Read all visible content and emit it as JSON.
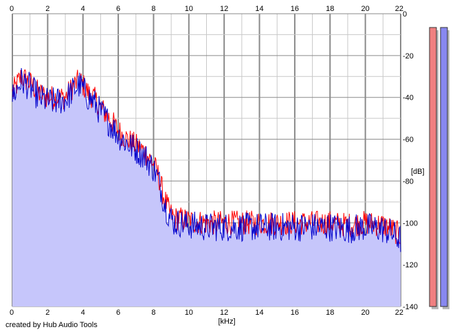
{
  "footer": {
    "credit": "created by Hub Audio Tools"
  },
  "colors": {
    "background": "#ffffff",
    "grid_major": "#8a8a8a",
    "grid_minor": "#c8c8c8",
    "fill": "#c6c6fb",
    "channel_left": "#ff0000",
    "channel_right": "#0000cc",
    "meter_left": "#f08080",
    "meter_right": "#8888f0",
    "meter_shadow": "#b8b8b8"
  },
  "chart_data": {
    "type": "line",
    "xlabel": "[kHz]",
    "ylabel": "[dB]",
    "xlim": [
      0,
      22
    ],
    "ylim": [
      -140,
      0
    ],
    "x_ticks": [
      "0",
      "2",
      "4",
      "6",
      "8",
      "10",
      "12",
      "14",
      "16",
      "18",
      "20",
      "22"
    ],
    "y_ticks": [
      "0",
      "-20",
      "-40",
      "-60",
      "-80",
      "-100",
      "-120",
      "-140"
    ],
    "grid": true,
    "x": [
      0,
      0.5,
      1,
      1.5,
      2,
      2.5,
      3,
      3.5,
      3.8,
      4,
      4.3,
      4.6,
      5,
      5.5,
      6,
      6.5,
      7,
      7.5,
      8,
      8.3,
      8.6,
      8.9,
      9.2,
      9.5,
      10,
      11,
      12,
      13,
      14,
      15,
      16,
      17,
      18,
      19,
      20,
      21,
      21.5,
      22
    ],
    "series": [
      {
        "values": [
          -38,
          -30,
          -33,
          -38,
          -40,
          -40,
          -40,
          -34,
          -32,
          -34,
          -38,
          -40,
          -45,
          -50,
          -56,
          -60,
          -63,
          -66,
          -72,
          -78,
          -88,
          -95,
          -98,
          -98,
          -99,
          -100,
          -100,
          -100,
          -100,
          -100,
          -100,
          -100,
          -100,
          -101,
          -100,
          -101,
          -103,
          -106
        ]
      },
      {
        "values": [
          -40,
          -32,
          -35,
          -40,
          -42,
          -42,
          -41,
          -36,
          -34,
          -36,
          -40,
          -42,
          -47,
          -52,
          -58,
          -62,
          -65,
          -68,
          -74,
          -80,
          -90,
          -97,
          -100,
          -100,
          -101,
          -102,
          -102,
          -102,
          -102,
          -102,
          -102,
          -102,
          -102,
          -103,
          -102,
          -103,
          -105,
          -108
        ]
      }
    ],
    "level_meters": [
      {
        "level": 1.0
      },
      {
        "level": 1.0
      }
    ]
  }
}
